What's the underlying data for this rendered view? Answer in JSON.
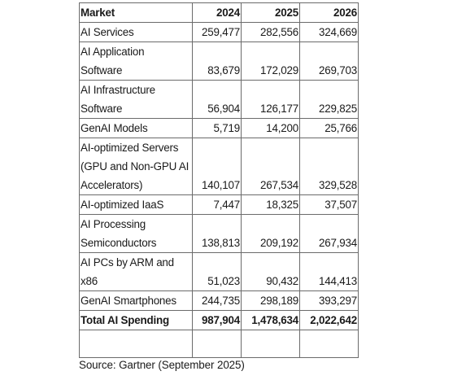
{
  "table": {
    "headers": [
      "Market",
      "2024",
      "2025",
      "2026"
    ],
    "rows": [
      {
        "lines": [
          "AI Services"
        ],
        "values": [
          "259,477",
          "282,556",
          "324,669"
        ]
      },
      {
        "lines": [
          "AI Application",
          "Software"
        ],
        "values": [
          "83,679",
          "172,029",
          "269,703"
        ]
      },
      {
        "lines": [
          "AI Infrastructure",
          "Software"
        ],
        "values": [
          "56,904",
          "126,177",
          "229,825"
        ]
      },
      {
        "lines": [
          "GenAI Models"
        ],
        "values": [
          "5,719",
          "14,200",
          "25,766"
        ]
      },
      {
        "lines": [
          "AI-optimized Servers",
          "(GPU and Non-GPU AI",
          "Accelerators)"
        ],
        "values": [
          "140,107",
          "267,534",
          "329,528"
        ]
      },
      {
        "lines": [
          "AI-optimized IaaS"
        ],
        "values": [
          "7,447",
          "18,325",
          "37,507"
        ]
      },
      {
        "lines": [
          "AI Processing",
          "Semiconductors"
        ],
        "values": [
          "138,813",
          "209,192",
          "267,934"
        ]
      },
      {
        "lines": [
          "AI PCs by ARM and",
          "x86"
        ],
        "values": [
          "51,023",
          "90,432",
          "144,413"
        ]
      },
      {
        "lines": [
          "GenAI Smartphones"
        ],
        "values": [
          "244,735",
          "298,189",
          "393,297"
        ]
      }
    ],
    "total": {
      "label": "Total AI Spending",
      "values": [
        "987,904",
        "1,478,634",
        "2,022,642"
      ]
    }
  },
  "source": "Source: Gartner (September 2025)"
}
